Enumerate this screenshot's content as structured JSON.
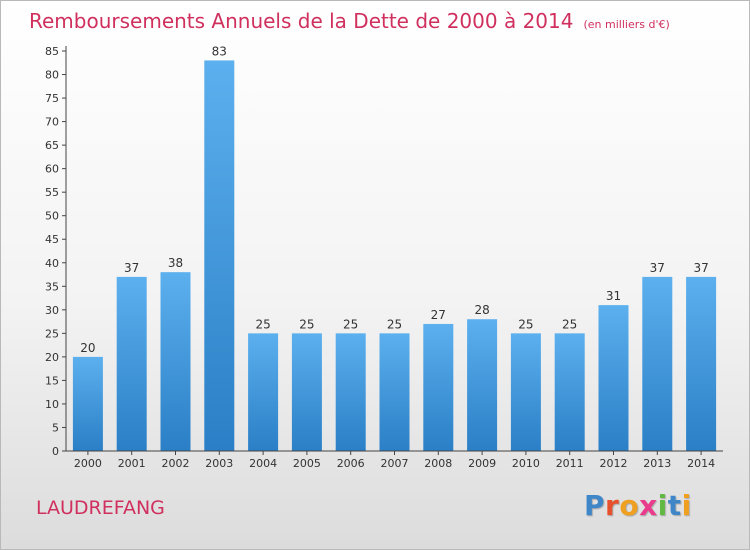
{
  "header": {
    "title": "Remboursements Annuels de la Dette de 2000 à 2014",
    "unit": "(en milliers d'€)"
  },
  "commune": "LAUDREFANG",
  "logo": {
    "letters": [
      "P",
      "r",
      "o",
      "x",
      "i",
      "t",
      "i"
    ],
    "colors": [
      "#3f86c9",
      "#e6502c",
      "#f0a020",
      "#e93a8c",
      "#61b843",
      "#3f86c9",
      "#f0a020"
    ]
  },
  "colors": {
    "bar": "#3a8fd9",
    "title": "#d0305e",
    "axis": "#333333"
  },
  "chart_data": {
    "type": "bar",
    "title": "Remboursements Annuels de la Dette de 2000 à 2014",
    "subtitle": "(en milliers d'€)",
    "xlabel": "",
    "ylabel": "",
    "categories": [
      "2000",
      "2001",
      "2002",
      "2003",
      "2004",
      "2005",
      "2006",
      "2007",
      "2008",
      "2009",
      "2010",
      "2011",
      "2012",
      "2013",
      "2014"
    ],
    "values": [
      20,
      37,
      38,
      83,
      25,
      25,
      25,
      25,
      27,
      28,
      25,
      25,
      31,
      37,
      37
    ],
    "ylim": [
      0,
      85
    ],
    "yticks": [
      0,
      5,
      10,
      15,
      20,
      25,
      30,
      35,
      40,
      45,
      50,
      55,
      60,
      65,
      70,
      75,
      80,
      85
    ],
    "grid": false,
    "legend": "none"
  }
}
